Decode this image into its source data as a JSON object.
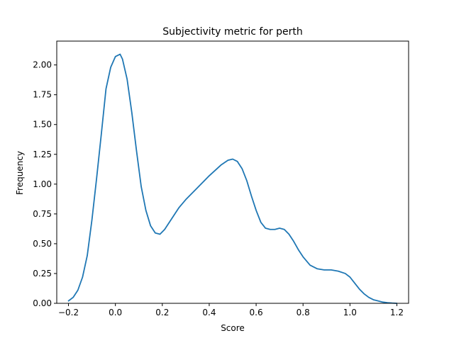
{
  "chart_data": {
    "type": "line",
    "title": "Subjectivity metric for perth",
    "xlabel": "Score",
    "ylabel": "Frequency",
    "xlim": [
      -0.25,
      1.25
    ],
    "ylim": [
      0,
      2.2
    ],
    "x_ticks": [
      -0.2,
      0.0,
      0.2,
      0.4,
      0.6,
      0.8,
      1.0,
      1.2
    ],
    "x_tick_labels": [
      "−0.2",
      "0.0",
      "0.2",
      "0.4",
      "0.6",
      "0.8",
      "1.0",
      "1.2"
    ],
    "y_ticks": [
      0.0,
      0.25,
      0.5,
      0.75,
      1.0,
      1.25,
      1.5,
      1.75,
      2.0
    ],
    "y_tick_labels": [
      "0.00",
      "0.25",
      "0.50",
      "0.75",
      "1.00",
      "1.25",
      "1.50",
      "1.75",
      "2.00"
    ],
    "grid": false,
    "series": [
      {
        "color": "#1f77b4",
        "x": [
          -0.2,
          -0.18,
          -0.16,
          -0.14,
          -0.12,
          -0.1,
          -0.08,
          -0.06,
          -0.04,
          -0.02,
          0.0,
          0.01,
          0.02,
          0.03,
          0.05,
          0.07,
          0.09,
          0.11,
          0.13,
          0.15,
          0.17,
          0.19,
          0.21,
          0.24,
          0.27,
          0.3,
          0.35,
          0.4,
          0.45,
          0.48,
          0.5,
          0.52,
          0.54,
          0.56,
          0.58,
          0.6,
          0.62,
          0.64,
          0.66,
          0.68,
          0.7,
          0.72,
          0.74,
          0.76,
          0.78,
          0.8,
          0.83,
          0.86,
          0.89,
          0.92,
          0.95,
          0.98,
          1.0,
          1.02,
          1.04,
          1.06,
          1.08,
          1.1,
          1.12,
          1.14,
          1.16,
          1.18,
          1.2
        ],
        "y": [
          0.02,
          0.05,
          0.11,
          0.22,
          0.4,
          0.7,
          1.05,
          1.42,
          1.8,
          1.98,
          2.07,
          2.08,
          2.09,
          2.05,
          1.88,
          1.6,
          1.28,
          0.98,
          0.78,
          0.65,
          0.59,
          0.58,
          0.62,
          0.71,
          0.8,
          0.87,
          0.97,
          1.07,
          1.16,
          1.2,
          1.21,
          1.19,
          1.13,
          1.03,
          0.9,
          0.78,
          0.68,
          0.63,
          0.62,
          0.62,
          0.63,
          0.62,
          0.58,
          0.52,
          0.45,
          0.39,
          0.32,
          0.29,
          0.28,
          0.28,
          0.27,
          0.25,
          0.22,
          0.17,
          0.12,
          0.08,
          0.05,
          0.03,
          0.02,
          0.01,
          0.005,
          0.002,
          0.0
        ]
      }
    ]
  }
}
